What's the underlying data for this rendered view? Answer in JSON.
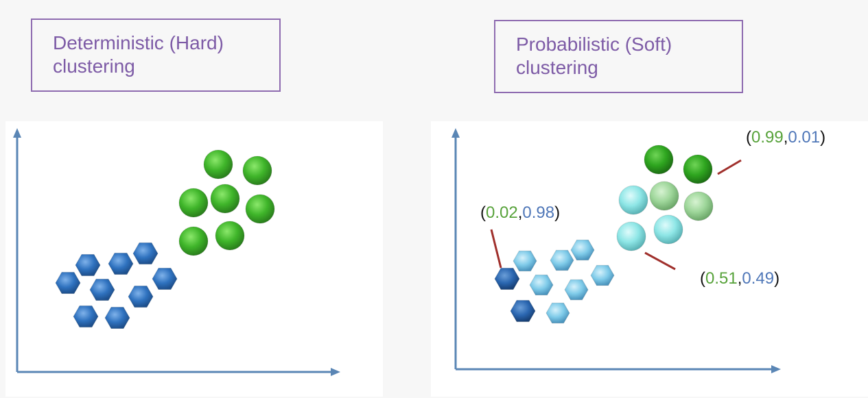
{
  "left_panel": {
    "title_line1": "Deterministic (Hard)",
    "title_line2": "clustering",
    "colors": {
      "green_cluster": "#3fb52a",
      "blue_cluster": "#2f72bf",
      "axis": "#5a86b5",
      "title_border": "#8e6bb0",
      "title_text": "#7d5ba6"
    }
  },
  "right_panel": {
    "title_line1": "Probabilistic (Soft)",
    "title_line2": "clustering",
    "annotations": [
      {
        "open": "(",
        "green": "0.99",
        "sep": ",",
        "blue": "0.01",
        "close": ")"
      },
      {
        "open": "(",
        "green": "0.02",
        "sep": ",",
        "blue": "0.98",
        "close": ")"
      },
      {
        "open": "(",
        "green": "0.51",
        "sep": ",",
        "blue": "0.49",
        "close": ")"
      }
    ],
    "colors": {
      "pure_green": "#2ea51f",
      "light_green": "#9ed69a",
      "cyan": "#8ee6e6",
      "light_blue": "#7fcbe9",
      "dark_blue": "#2a66b0",
      "leader_line": "#a0302c",
      "annotation_green": "#57a23a",
      "annotation_blue": "#4f77b8"
    }
  }
}
